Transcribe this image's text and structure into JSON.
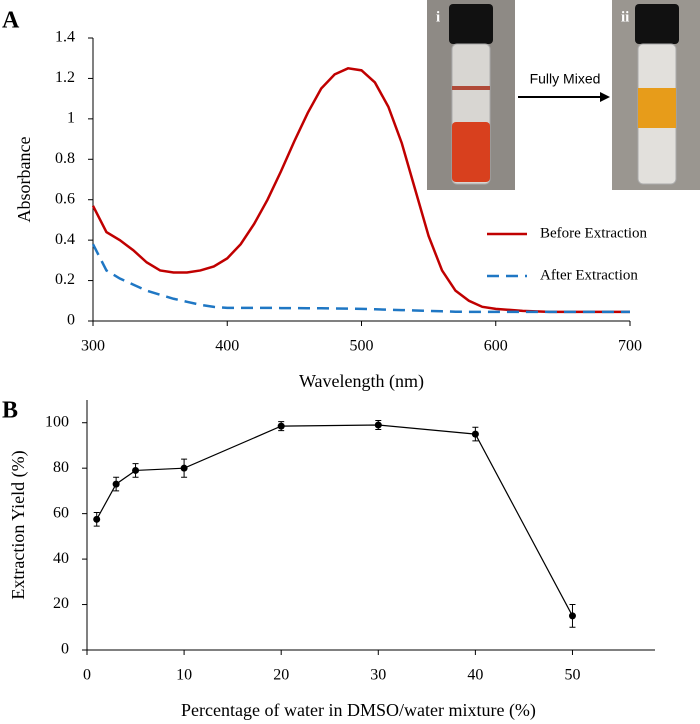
{
  "chart_data": [
    {
      "type": "line",
      "panel": "A",
      "xlabel": "Wavelength (nm)",
      "ylabel": "Absorbance",
      "x": [
        300,
        310,
        320,
        330,
        340,
        350,
        360,
        370,
        380,
        390,
        400,
        410,
        420,
        430,
        440,
        450,
        460,
        470,
        480,
        490,
        500,
        510,
        520,
        530,
        540,
        550,
        560,
        570,
        580,
        590,
        600,
        620,
        640,
        660,
        680,
        700
      ],
      "series": [
        {
          "name": "Before Extraction",
          "color": "#c00000",
          "dash": false,
          "values": [
            0.57,
            0.44,
            0.4,
            0.35,
            0.29,
            0.25,
            0.24,
            0.24,
            0.25,
            0.27,
            0.31,
            0.38,
            0.48,
            0.6,
            0.74,
            0.89,
            1.03,
            1.15,
            1.22,
            1.25,
            1.24,
            1.18,
            1.06,
            0.88,
            0.65,
            0.42,
            0.25,
            0.15,
            0.1,
            0.07,
            0.06,
            0.05,
            0.045,
            0.045,
            0.045,
            0.045
          ]
        },
        {
          "name": "After Extraction",
          "color": "#1f77c4",
          "dash": true,
          "values": [
            0.38,
            0.25,
            0.21,
            0.18,
            0.15,
            0.13,
            0.11,
            0.095,
            0.08,
            0.07,
            0.065,
            0.065,
            0.065,
            0.065,
            0.064,
            0.064,
            0.063,
            0.063,
            0.062,
            0.061,
            0.06,
            0.058,
            0.056,
            0.054,
            0.052,
            0.05,
            0.048,
            0.046,
            0.045,
            0.045,
            0.045,
            0.045,
            0.045,
            0.045,
            0.045,
            0.045
          ]
        }
      ],
      "xlim": [
        300,
        700
      ],
      "xticks": [
        300,
        400,
        500,
        600,
        700
      ],
      "ylim": [
        0,
        1.4
      ],
      "yticks": [
        0,
        0.2,
        0.4,
        0.6,
        0.8,
        1,
        1.2,
        1.4
      ],
      "legend": "right",
      "inset": {
        "left_label": "i",
        "right_label": "ii",
        "arrow_label": "Fully Mixed"
      }
    },
    {
      "type": "line",
      "panel": "B",
      "xlabel": "Percentage of water in DMSO/water mixture (%)",
      "ylabel": "Extraction Yield (%)",
      "x": [
        1,
        3,
        5,
        10,
        20,
        30,
        40,
        50
      ],
      "series": [
        {
          "color": "#000000",
          "markers": true,
          "values": [
            57.5,
            73,
            79,
            80,
            98.5,
            99,
            95,
            15
          ],
          "errors": [
            3,
            3,
            3,
            4,
            2,
            2,
            3,
            5
          ]
        }
      ],
      "xlim": [
        0,
        58.5
      ],
      "xticks": [
        0,
        10,
        20,
        30,
        40,
        50
      ],
      "ylim": [
        0,
        110
      ],
      "yticks": [
        0,
        20,
        40,
        60,
        80,
        100
      ]
    }
  ]
}
